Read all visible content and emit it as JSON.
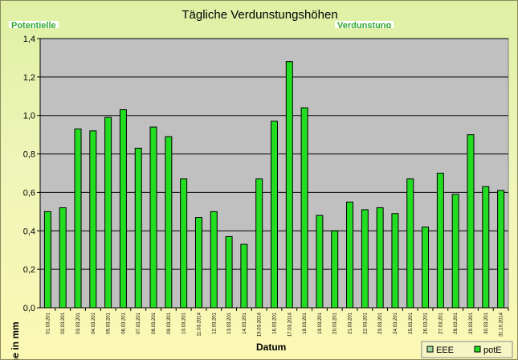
{
  "title": "Tägliche Verdunstungshöhen",
  "stray_left": "Potentielle",
  "stray_right": "Verdunstung",
  "colors": {
    "plot_bg": "#c0c0c0",
    "bar": "#22dd22",
    "bar_stroke": "#000000"
  },
  "chart_data": {
    "type": "bar",
    "title": "Tägliche Verdunstungshöhen",
    "xlabel": "Datum",
    "ylabel": "Höhe in mm",
    "ylim": [
      0,
      1.4
    ],
    "yticks": [
      "0,0",
      "0,2",
      "0,4",
      "0,6",
      "0,8",
      "1,0",
      "1,2",
      "1,4"
    ],
    "grid": true,
    "legend_position": "bottom-right",
    "legend": [
      "EEE",
      "potE"
    ],
    "categories": [
      "01.03.201",
      "02.03.201",
      "03.03.201",
      "04.03.201",
      "05.03.201",
      "06.03.201",
      "07.03.201",
      "08.03.201",
      "09.03.201",
      "10.03.201",
      "11.03.2014",
      "12.03.201",
      "13.03.201",
      "14.03.201",
      "15.03.2014",
      "16.03.201",
      "17.03.2014",
      "18.03.201",
      "19.03.201",
      "20.03.201",
      "21.03.201",
      "22.03.201",
      "23.03.201",
      "24.03.201",
      "25.03.201",
      "26.03.201",
      "27.03.201",
      "28.03.201",
      "29.03.201",
      "30.03.201",
      "31.10.2014"
    ],
    "series": [
      {
        "name": "potE",
        "values": [
          0.5,
          0.52,
          0.93,
          0.92,
          0.99,
          1.03,
          0.83,
          0.94,
          0.89,
          0.67,
          0.47,
          0.5,
          0.37,
          0.33,
          0.67,
          0.97,
          1.28,
          1.04,
          0.48,
          0.4,
          0.55,
          0.51,
          0.52,
          0.49,
          0.67,
          0.42,
          0.7,
          0.59,
          0.9,
          0.63,
          0.61
        ]
      }
    ]
  }
}
